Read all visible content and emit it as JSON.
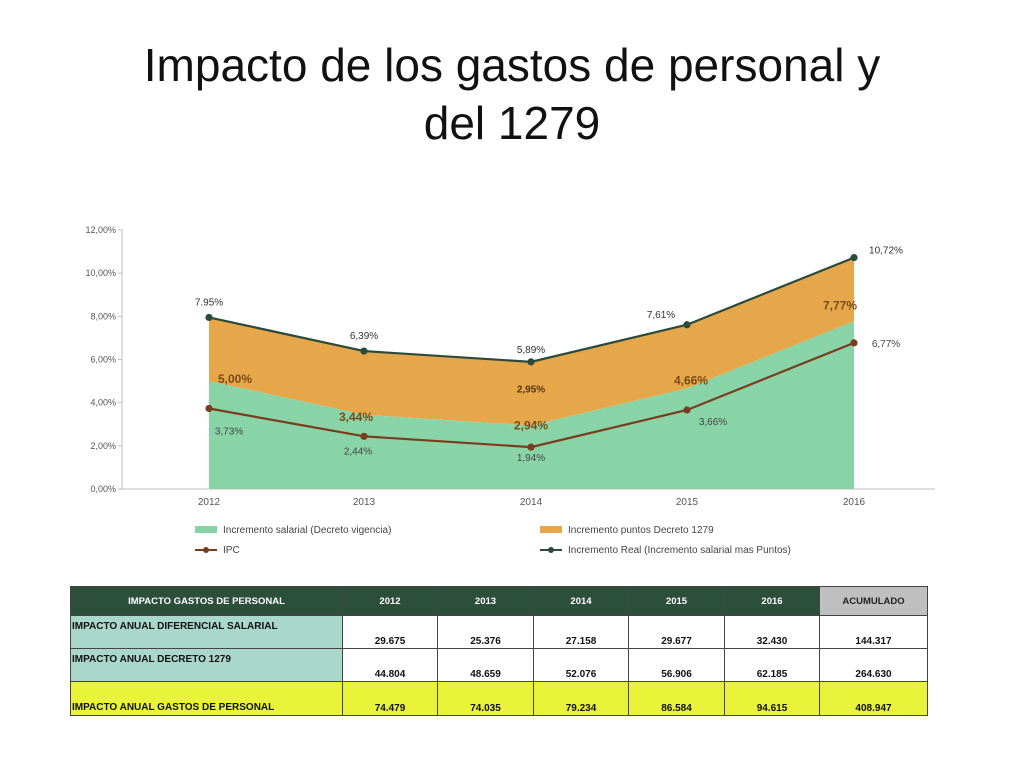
{
  "slide": {
    "title_line1": "Impacto de los gastos de personal y",
    "title_line2": "del 1279"
  },
  "chart_data": {
    "type": "area",
    "categories": [
      "2012",
      "2013",
      "2014",
      "2015",
      "2016"
    ],
    "ylim": [
      0,
      12
    ],
    "y_ticks": [
      "0,00%",
      "2,00%",
      "4,00%",
      "6,00%",
      "8,00%",
      "10,00%",
      "12,00%"
    ],
    "grid": false,
    "legend_position": "bottom",
    "series": [
      {
        "name": "Incremento salarial (Decreto vigencia)",
        "kind": "area",
        "color": "#88d4a6",
        "values": [
          5.0,
          3.44,
          2.94,
          4.66,
          7.77
        ],
        "labels": [
          "5,00%",
          "3,44%",
          "2,94%",
          "4,66%",
          "7,77%"
        ]
      },
      {
        "name": "Incremento puntos Decreto 1279",
        "kind": "area",
        "color": "#e6a74b",
        "values": [
          2.95,
          2.95,
          2.95,
          2.95,
          2.95
        ],
        "labels": [
          "",
          "",
          "2,95%",
          "",
          ""
        ]
      },
      {
        "name": "IPC",
        "kind": "line",
        "color": "#7a3b1e",
        "values": [
          3.73,
          2.44,
          1.94,
          3.66,
          6.77
        ],
        "labels": [
          "3,73%",
          "2,44%",
          "1,94%",
          "3,66%",
          "6,77%"
        ]
      },
      {
        "name": "Incremento Real (Incremento salarial mas Puntos)",
        "kind": "line",
        "color": "#2b4a3c",
        "values": [
          7.95,
          6.39,
          5.89,
          7.61,
          10.72
        ],
        "labels": [
          "7.95%",
          "6,39%",
          "5,89%",
          "7,61%",
          "10,72%"
        ]
      }
    ]
  },
  "table": {
    "header": [
      "IMPACTO GASTOS DE PERSONAL",
      "2012",
      "2013",
      "2014",
      "2015",
      "2016",
      "ACUMULADO"
    ],
    "rows": [
      [
        "IMPACTO ANUAL DIFERENCIAL SALARIAL",
        "29.675",
        "25.376",
        "27.158",
        "29.677",
        "32.430",
        "144.317"
      ],
      [
        "IMPACTO ANUAL DECRETO 1279",
        "44.804",
        "48.659",
        "52.076",
        "56.906",
        "62.185",
        "264.630"
      ],
      [
        "IMPACTO ANUAL GASTOS DE PERSONAL",
        "74.479",
        "74.035",
        "79.234",
        "86.584",
        "94.615",
        "408.947"
      ]
    ]
  }
}
